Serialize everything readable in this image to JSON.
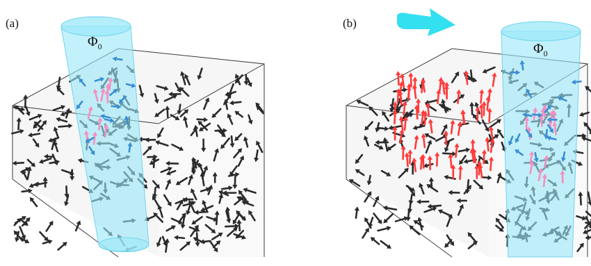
{
  "panels": [
    {
      "label": "(a)",
      "flux_symbol": "Φ",
      "flux_subscript": "0",
      "flux_motion_arrow": false
    },
    {
      "label": "(b)",
      "flux_symbol": "Φ",
      "flux_subscript": "0",
      "flux_motion_arrow": true
    }
  ],
  "colors": {
    "background": "#ffffff",
    "box_fill": "#efefef",
    "box_edge": "#3a3a3a",
    "cylinder_fill": "#9be8f8",
    "cylinder_edge": "#6fd4ee",
    "motion_arrow": "#33e0f0",
    "spin_dark": "#2b2b2b",
    "spin_red": "#ff3a3a",
    "spin_pink": "#f48fc0",
    "spin_blue": "#3a8ed4"
  }
}
